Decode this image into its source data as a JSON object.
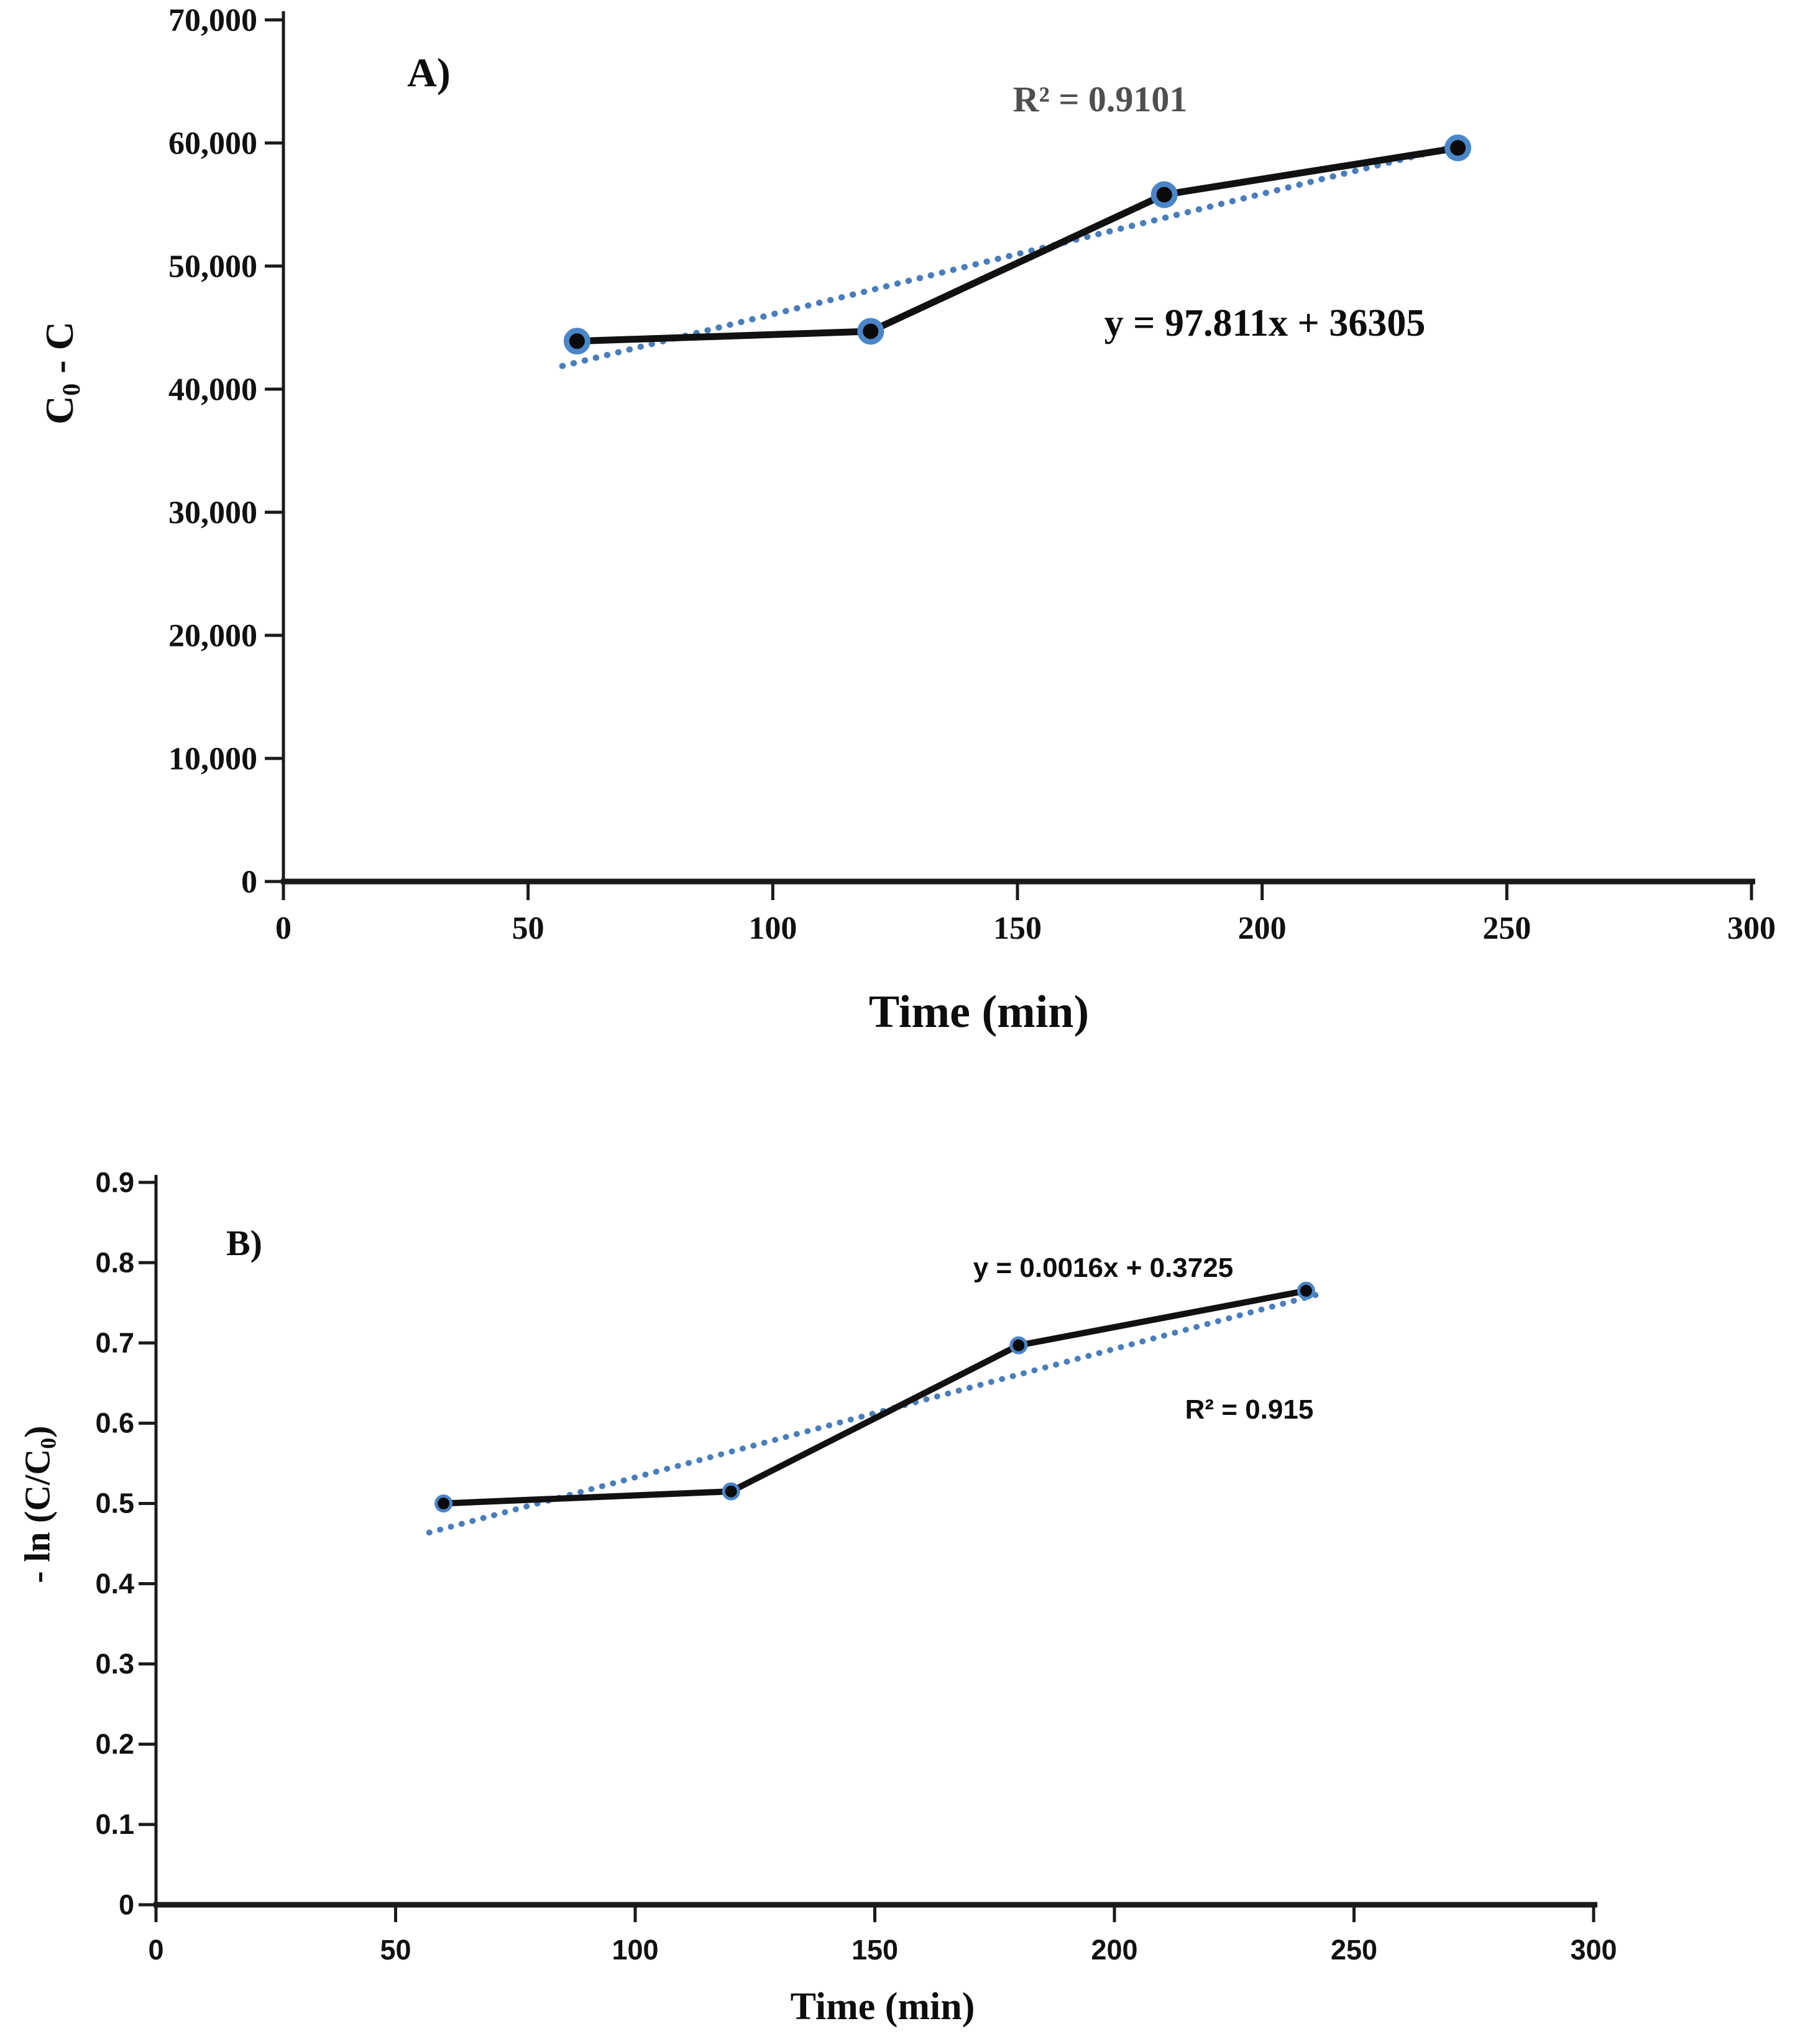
{
  "figure": {
    "background": "#ffffff",
    "panels": [
      "A",
      "B"
    ]
  },
  "colors": {
    "data_line": "#111111",
    "marker_fill": "#0a0a0a",
    "marker_ring": "#4a86c8",
    "trend_dot": "#4a7ebb",
    "axis": "#1a1a1a",
    "tick_text": "#111111",
    "r2_gray_panel_a": "#4f4f4f",
    "text_black": "#0d0d0d"
  },
  "chart_data": [
    {
      "id": "A",
      "type": "line",
      "panel_label": "A)",
      "x_label": "Time (min)",
      "y_label_parts": [
        {
          "text": "C"
        },
        {
          "text": "0",
          "sub": true
        },
        {
          "text": " - C"
        }
      ],
      "x": [
        60,
        120,
        180,
        240
      ],
      "y": [
        43900,
        44700,
        55800,
        59600
      ],
      "xlim": [
        0,
        300
      ],
      "ylim": [
        0,
        70000
      ],
      "grid": false,
      "legend": null,
      "x_ticks": [
        {
          "v": 0,
          "label": "0"
        },
        {
          "v": 50,
          "label": "50"
        },
        {
          "v": 100,
          "label": "100"
        },
        {
          "v": 150,
          "label": "150"
        },
        {
          "v": 200,
          "label": "200"
        },
        {
          "v": 250,
          "label": "250"
        },
        {
          "v": 300,
          "label": "300"
        }
      ],
      "y_ticks": [
        {
          "v": 0,
          "label": "0"
        },
        {
          "v": 10000,
          "label": "10,000"
        },
        {
          "v": 20000,
          "label": "20,000"
        },
        {
          "v": 30000,
          "label": "30,000"
        },
        {
          "v": 40000,
          "label": "40,000"
        },
        {
          "v": 50000,
          "label": "50,000"
        },
        {
          "v": 60000,
          "label": "60,000"
        },
        {
          "v": 70000,
          "label": "70,000"
        }
      ],
      "trendline": {
        "slope": 97.811,
        "intercept": 36305,
        "x_start": 57,
        "x_end": 242,
        "equation": "y = 97.811x + 36305",
        "r2": "R² = 0.9101"
      }
    },
    {
      "id": "B",
      "type": "line",
      "panel_label": "B)",
      "x_label": "Time (min)",
      "y_label_parts": [
        {
          "text": "- ln (C/C"
        },
        {
          "text": "0",
          "sub": true
        },
        {
          "text": ")"
        }
      ],
      "x": [
        60,
        120,
        180,
        240
      ],
      "y": [
        0.5,
        0.515,
        0.697,
        0.765
      ],
      "xlim": [
        0,
        300
      ],
      "ylim": [
        0,
        0.9
      ],
      "grid": false,
      "legend": null,
      "x_ticks": [
        {
          "v": 0,
          "label": "0"
        },
        {
          "v": 50,
          "label": "50"
        },
        {
          "v": 100,
          "label": "100"
        },
        {
          "v": 150,
          "label": "150"
        },
        {
          "v": 200,
          "label": "200"
        },
        {
          "v": 250,
          "label": "250"
        },
        {
          "v": 300,
          "label": "300"
        }
      ],
      "y_ticks": [
        {
          "v": 0,
          "label": "0"
        },
        {
          "v": 0.1,
          "label": "0.1"
        },
        {
          "v": 0.2,
          "label": "0.2"
        },
        {
          "v": 0.3,
          "label": "0.3"
        },
        {
          "v": 0.4,
          "label": "0.4"
        },
        {
          "v": 0.5,
          "label": "0.5"
        },
        {
          "v": 0.6,
          "label": "0.6"
        },
        {
          "v": 0.7,
          "label": "0.7"
        },
        {
          "v": 0.8,
          "label": "0.8"
        },
        {
          "v": 0.9,
          "label": "0.9"
        }
      ],
      "trendline": {
        "slope": 0.0016,
        "intercept": 0.3725,
        "x_start": 57,
        "x_end": 242,
        "equation": "y = 0.0016x + 0.3725",
        "r2": "R² = 0.915"
      }
    }
  ]
}
